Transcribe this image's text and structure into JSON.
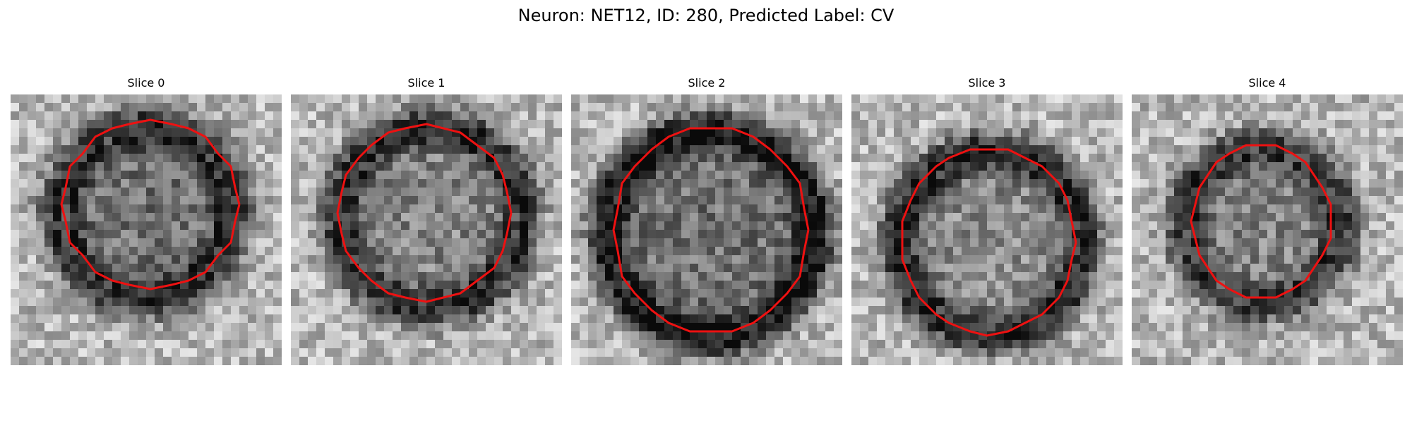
{
  "figure": {
    "title": "Neuron: NET12, ID: 280, Predicted Label: CV"
  },
  "colors": {
    "contour": "#ee1111"
  },
  "panels": [
    {
      "title": "Slice 0"
    },
    {
      "title": "Slice 1"
    },
    {
      "title": "Slice 2"
    },
    {
      "title": "Slice 3"
    },
    {
      "title": "Slice 4"
    }
  ]
}
